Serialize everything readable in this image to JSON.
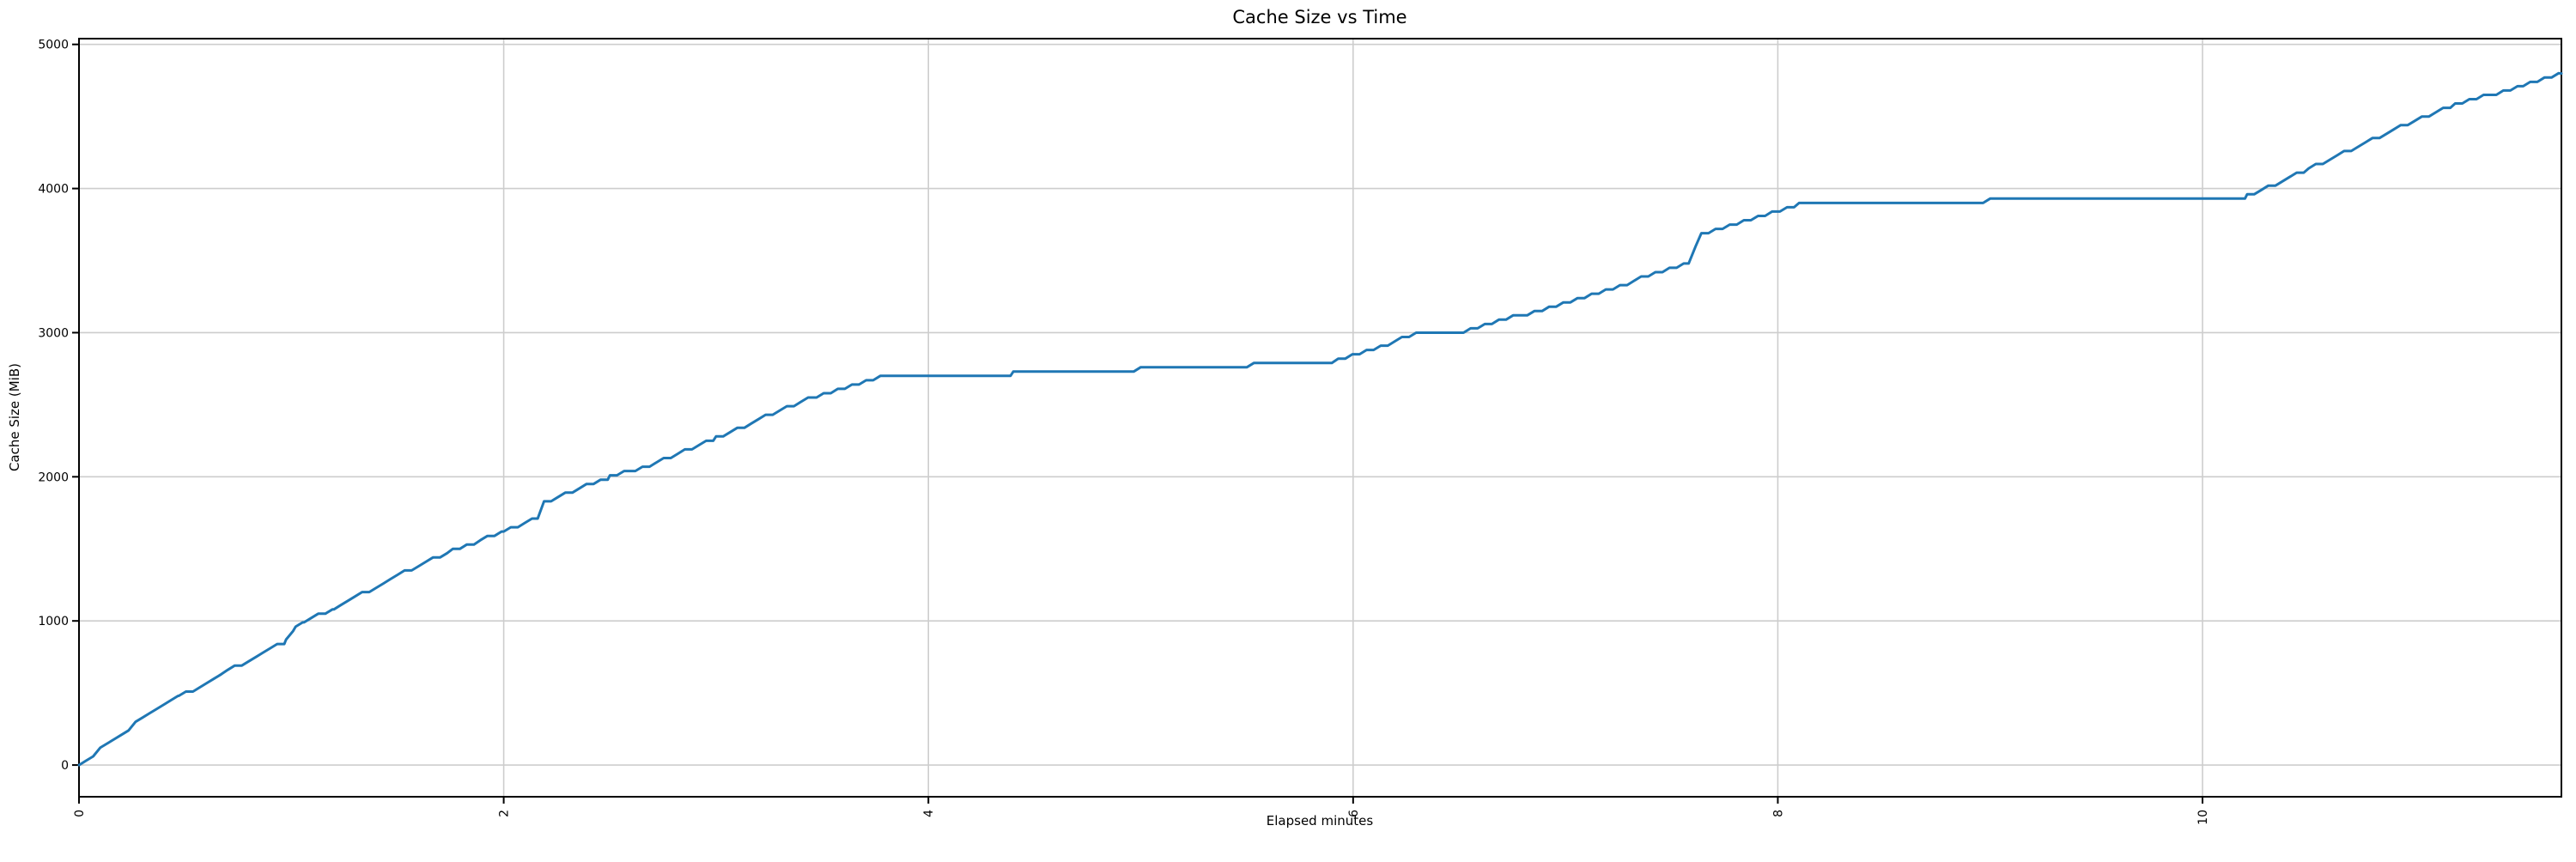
{
  "chart_data": {
    "type": "line",
    "title": "Cache Size vs Time",
    "xlabel": "Elapsed minutes",
    "ylabel": "Cache Size (MiB)",
    "xlim": [
      0,
      11.69
    ],
    "ylim": [
      -220,
      5040
    ],
    "x_ticks": [
      0,
      2,
      4,
      6,
      8,
      10
    ],
    "y_ticks": [
      0,
      1000,
      2000,
      3000,
      4000,
      5000
    ],
    "grid": true,
    "grid_color": "#cdcdcd",
    "spine_color": "#000000",
    "line_color": "#1f77b4",
    "legend": "none",
    "series": [
      {
        "name": "Cache Size (MiB)",
        "points": [
          [
            0.0,
            0
          ],
          [
            0.1,
            105
          ],
          [
            0.2,
            215
          ],
          [
            0.3,
            320
          ],
          [
            0.47,
            470
          ],
          [
            0.7,
            650
          ],
          [
            0.975,
            860
          ],
          [
            1.02,
            958
          ],
          [
            1.06,
            1000
          ],
          [
            1.2,
            1090
          ],
          [
            1.4,
            1235
          ],
          [
            1.6,
            1385
          ],
          [
            1.76,
            1494
          ],
          [
            1.89,
            1560
          ],
          [
            2.0,
            1625
          ],
          [
            2.16,
            1720
          ],
          [
            2.19,
            1822
          ],
          [
            2.5,
            2000
          ],
          [
            2.62,
            2045
          ],
          [
            3.0,
            2270
          ],
          [
            3.44,
            2545
          ],
          [
            3.82,
            2705
          ],
          [
            4.4,
            2715
          ],
          [
            4.8,
            2735
          ],
          [
            5.2,
            2758
          ],
          [
            5.6,
            2780
          ],
          [
            5.93,
            2805
          ],
          [
            6.33,
            3008
          ],
          [
            6.52,
            3012
          ],
          [
            6.89,
            3160
          ],
          [
            7.19,
            3290
          ],
          [
            7.58,
            3490
          ],
          [
            7.64,
            3690
          ],
          [
            8.01,
            3850
          ],
          [
            8.1,
            3890
          ],
          [
            8.6,
            3905
          ],
          [
            9.0,
            3915
          ],
          [
            9.4,
            3928
          ],
          [
            9.8,
            3940
          ],
          [
            10.21,
            3945
          ],
          [
            10.5,
            4140
          ],
          [
            10.8,
            4340
          ],
          [
            11.0,
            4470
          ],
          [
            11.19,
            4580
          ],
          [
            11.35,
            4650
          ],
          [
            11.51,
            4718
          ],
          [
            11.69,
            4798
          ]
        ]
      }
    ]
  }
}
